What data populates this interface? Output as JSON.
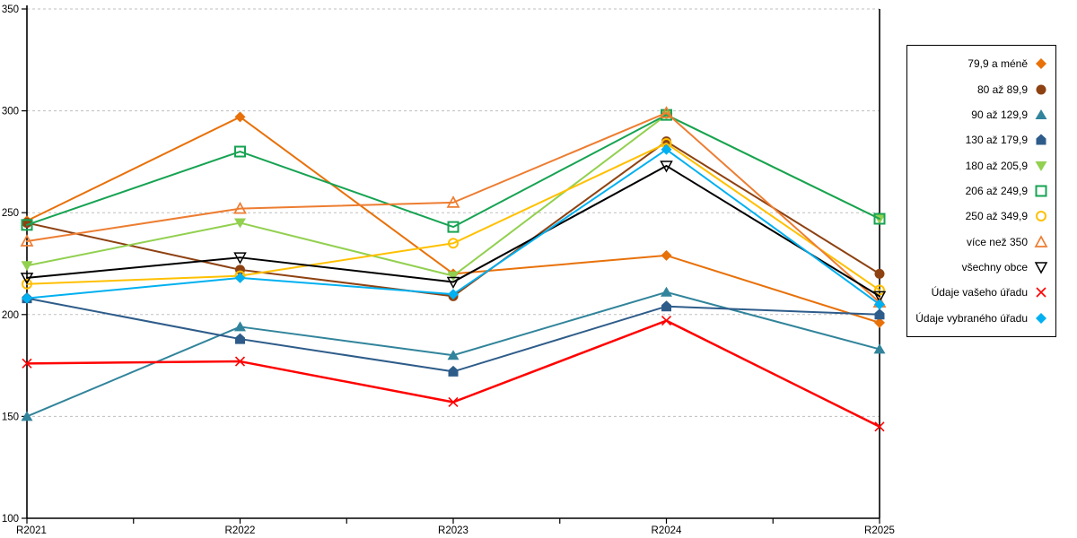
{
  "chart_data": {
    "type": "line",
    "title": "",
    "xlabel": "",
    "ylabel": "",
    "categories": [
      "R2021",
      "R2022",
      "R2023",
      "R2024",
      "R2025"
    ],
    "y_axis": {
      "min": 100,
      "max": 350,
      "tick_step": 50,
      "tick_labels": [
        "100",
        "150",
        "200",
        "250",
        "300",
        "350"
      ]
    },
    "grid": {
      "horizontal": true,
      "style": "dashed",
      "color": "#BFBFBF"
    },
    "legend_position": "right",
    "series": [
      {
        "name": "79,9 a méně",
        "color": "#E8710A",
        "marker": "diamond-filled",
        "values": [
          246,
          297,
          220,
          229,
          196
        ]
      },
      {
        "name": "80 až 89,9",
        "color": "#8E4212",
        "marker": "circle-filled",
        "values": [
          245,
          222,
          209,
          285,
          220
        ]
      },
      {
        "name": "90 až 129,9",
        "color": "#31849B",
        "marker": "triangle-up-filled",
        "values": [
          150,
          194,
          180,
          211,
          183
        ]
      },
      {
        "name": "130 až 179,9",
        "color": "#2E5C8A",
        "marker": "pentagon-filled",
        "values": [
          208,
          188,
          172,
          204,
          200
        ]
      },
      {
        "name": "180 až 205,9",
        "color": "#92D050",
        "marker": "triangle-down-filled",
        "values": [
          224,
          245,
          219,
          298,
          247
        ]
      },
      {
        "name": "206 až 249,9",
        "color": "#17A353",
        "marker": "square-open",
        "values": [
          244,
          280,
          243,
          298,
          247
        ]
      },
      {
        "name": "250 až 349,9",
        "color": "#FFC000",
        "marker": "circle-open",
        "values": [
          215,
          219,
          235,
          284,
          212
        ]
      },
      {
        "name": "více než 350",
        "color": "#ED7D31",
        "marker": "triangle-up-open",
        "values": [
          236,
          252,
          255,
          299,
          206
        ]
      },
      {
        "name": "všechny obce",
        "color": "#000000",
        "marker": "triangle-down-open",
        "values": [
          218,
          228,
          216,
          273,
          209
        ]
      },
      {
        "name": "Údaje vašeho úřadu",
        "color": "#FF0000",
        "marker": "x-cross",
        "values": [
          176,
          177,
          157,
          197,
          145
        ]
      },
      {
        "name": "Údaje vybraného úřadu",
        "color": "#00B0F0",
        "marker": "diamond-filled",
        "values": [
          208,
          218,
          210,
          281,
          205
        ]
      }
    ]
  }
}
